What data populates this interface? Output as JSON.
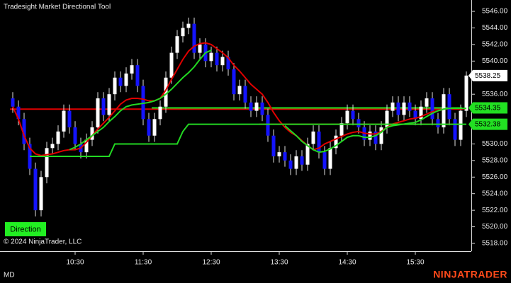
{
  "chart_data": {
    "type": "candlestick",
    "title": "Tradesight Market Directional Tool",
    "copyright": "© 2024 NinjaTrader, LLC",
    "button": "Direction",
    "status": "MD",
    "logo": "NINJATRADER",
    "categories": [
      null,
      null,
      null,
      null,
      null,
      null,
      null,
      null,
      null,
      null,
      null,
      "10:30",
      null,
      null,
      null,
      null,
      null,
      null,
      null,
      null,
      null,
      null,
      null,
      "11:30",
      null,
      null,
      null,
      null,
      null,
      null,
      null,
      null,
      null,
      null,
      null,
      "12:30",
      null,
      null,
      null,
      null,
      null,
      null,
      null,
      null,
      null,
      null,
      null,
      "13:30",
      null,
      null,
      null,
      null,
      null,
      null,
      null,
      null,
      null,
      null,
      null,
      "14:30",
      null,
      null,
      null,
      null,
      null,
      null,
      null,
      null,
      null,
      null,
      null,
      "15:30",
      null,
      null,
      null,
      null,
      null,
      null,
      null,
      null,
      null
    ],
    "open": [
      5535.5,
      5534.5,
      5533,
      5530,
      5527,
      5522,
      5526,
      5529.5,
      5530,
      5531.5,
      5534,
      5532,
      5530,
      5529,
      5530.5,
      5532,
      5535.5,
      5533.5,
      5536,
      5538,
      5537,
      5538.5,
      5539.5,
      5537,
      5533,
      5531,
      5533,
      5534.5,
      5538,
      5541,
      5543,
      5544,
      5544.5,
      5541,
      5542,
      5540,
      5541,
      5539.5,
      5540.5,
      5539,
      5536,
      5537,
      5535,
      5534,
      5535,
      5533.5,
      5531,
      5528.5,
      5529,
      5528,
      5527,
      5528.5,
      5527.5,
      5530,
      5531.5,
      5529,
      5527,
      5529.5,
      5531,
      5532.5,
      5534,
      5533,
      5532,
      5530.5,
      5531.5,
      5530,
      5532,
      5534,
      5535,
      5533.5,
      5535,
      5534,
      5533,
      5534.5,
      5535.5,
      5533,
      5532,
      5536,
      5533,
      5530.5,
      5534
    ],
    "high": [
      5536.25,
      5535.25,
      5533.75,
      5530.75,
      5527.75,
      5526.75,
      5530.25,
      5530.75,
      5532.25,
      5534.75,
      5534.75,
      5532.75,
      5530.75,
      5531.25,
      5532.75,
      5536.25,
      5536.25,
      5536.75,
      5538.75,
      5538.75,
      5539.25,
      5540.25,
      5540.25,
      5537.75,
      5533.75,
      5533.75,
      5535.25,
      5538.75,
      5541.75,
      5543.75,
      5544.75,
      5545.25,
      5545.25,
      5542.75,
      5542.75,
      5541.75,
      5541.75,
      5541.25,
      5541.25,
      5539.75,
      5537.75,
      5537.75,
      5535.75,
      5535.75,
      5535.75,
      5534.25,
      5531.75,
      5529.75,
      5529.75,
      5528.75,
      5529.25,
      5529.25,
      5530.75,
      5532.25,
      5532.25,
      5529.75,
      5530.25,
      5531.75,
      5533.25,
      5534.75,
      5534.75,
      5533.75,
      5532.75,
      5532.25,
      5532.25,
      5532.75,
      5534.75,
      5535.75,
      5535.75,
      5535.75,
      5535.75,
      5534.75,
      5535.25,
      5536.25,
      5536.25,
      5533.75,
      5536.75,
      5536.75,
      5533.75,
      5534.75,
      5538.75
    ],
    "low": [
      5533.75,
      5532.25,
      5529.25,
      5526.25,
      5521.25,
      5521.25,
      5525.25,
      5528.75,
      5529.25,
      5530.75,
      5531.25,
      5529.25,
      5528.25,
      5528.25,
      5529.75,
      5531.25,
      5532.75,
      5532.75,
      5535.25,
      5536.25,
      5536.25,
      5537.75,
      5536.25,
      5532.25,
      5530.25,
      5530.25,
      5532.25,
      5533.75,
      5537.25,
      5540.25,
      5542.25,
      5543.25,
      5540.25,
      5540.25,
      5539.25,
      5539.25,
      5538.75,
      5538.75,
      5538.25,
      5535.25,
      5535.25,
      5534.25,
      5533.25,
      5533.25,
      5532.75,
      5530.25,
      5527.75,
      5527.75,
      5527.25,
      5526.25,
      5526.25,
      5526.75,
      5526.75,
      5529.25,
      5528.25,
      5526.25,
      5526.25,
      5528.75,
      5530.25,
      5531.75,
      5532.25,
      5531.25,
      5529.75,
      5529.75,
      5529.25,
      5529.25,
      5531.25,
      5533.25,
      5532.75,
      5532.75,
      5533.25,
      5532.25,
      5532.25,
      5533.75,
      5532.25,
      5531.25,
      5531.25,
      5532.25,
      5529.75,
      5529.75,
      5533.25
    ],
    "close": [
      5534.5,
      5533,
      5530,
      5527,
      5522,
      5526,
      5529.5,
      5530,
      5531.5,
      5534,
      5532,
      5530,
      5529,
      5530.5,
      5532,
      5535.5,
      5533.5,
      5536,
      5538,
      5537,
      5538.5,
      5539.5,
      5537,
      5533,
      5531,
      5533,
      5534.5,
      5538,
      5541,
      5543,
      5544,
      5544.5,
      5541,
      5542,
      5540,
      5541,
      5539.5,
      5540.5,
      5539,
      5536,
      5537,
      5535,
      5534,
      5535,
      5533.5,
      5531,
      5528.5,
      5529,
      5528,
      5527,
      5528.5,
      5527.5,
      5530,
      5531.5,
      5529,
      5527,
      5529.5,
      5531,
      5532.5,
      5534,
      5533,
      5532,
      5530.5,
      5531.5,
      5530,
      5532,
      5534,
      5535,
      5533.5,
      5535,
      5534,
      5533,
      5534.5,
      5535.5,
      5533,
      5532,
      5536,
      5533,
      5530.5,
      5534,
      5538.25
    ],
    "up_color": "#ffffff",
    "down_color": "#1414ff",
    "wick_color": "#e0e0e0",
    "series": [
      {
        "color": "#e00000",
        "values": [
          5534.5,
          5533,
          5531,
          5529.5,
          5528.8,
          5528.6,
          5528.7,
          5528.8,
          5529,
          5529.2,
          5529.3,
          5529.3,
          5529.5,
          5530.2,
          5531,
          5531.8,
          5532.5,
          5533.2,
          5534,
          5534.8,
          5535.3,
          5535.5,
          5535.5,
          5535.4,
          5535.2,
          5535.2,
          5535.5,
          5536.5,
          5537.8,
          5539,
          5540.2,
          5541.2,
          5541.8,
          5542.1,
          5542.2,
          5542,
          5541.5,
          5541,
          5540.4,
          5539.5,
          5538.8,
          5538,
          5537.2,
          5536.6,
          5536,
          5535,
          5533.8,
          5532.8,
          5532,
          5531.4,
          5531,
          5530.4,
          5529.8,
          5529.3,
          5529.5,
          5530,
          5530.3,
          5530.6,
          5530.9,
          5531.2,
          5531.4,
          5531.5,
          5531.3,
          5531.2,
          5531.2,
          5531.5,
          5532,
          5532.4,
          5532.6,
          5532.8,
          5533,
          5533.1,
          5533.3,
          5533.6,
          5533.9,
          5534,
          5534.2,
          5534.3,
          5534.3,
          5534.2,
          5534.3
        ]
      },
      {
        "color": "#22d822",
        "values": [
          null,
          null,
          null,
          null,
          null,
          null,
          null,
          null,
          null,
          null,
          5529.3,
          5529.6,
          5530,
          5530.5,
          5531,
          5531.5,
          5532,
          5532.7,
          5533.3,
          5534,
          5534.5,
          5534.7,
          5534.8,
          5534.9,
          5535,
          5535.2,
          5535.5,
          5536,
          5536.6,
          5537.3,
          5538,
          5538.6,
          5539.3,
          5540.2,
          5541,
          5541.3,
          null,
          null,
          null,
          null,
          null,
          null,
          null,
          null,
          null,
          null,
          null,
          null,
          5532.2,
          5531.6,
          5531,
          5530.3,
          5529.8,
          5529.3,
          5529,
          5529.1,
          5529.4,
          5529.8,
          5530.3,
          5530.8,
          5531,
          5531,
          5530.8,
          5530.8,
          5531,
          5531.4,
          5532,
          5532.2,
          5532.3,
          5532.4,
          5532.5,
          5532.6,
          5532.9,
          5533.3,
          5533.7,
          5534,
          5534.2,
          5534.3,
          5534.3,
          5534.3,
          5534.3
        ]
      },
      {
        "color": "#22d822",
        "values": [
          null,
          null,
          null,
          5528.5,
          5528.5,
          5528.5,
          5528.5,
          5528.5,
          5528.5,
          5528.5,
          5528.5,
          5528.5,
          5528.5,
          5528.5,
          5528.5,
          5528.5,
          5528.5,
          5528.5,
          5530,
          5530,
          5530,
          5530,
          5530,
          5530,
          5530,
          5530,
          5530,
          5530,
          5530,
          5530,
          5531.5,
          5532.38,
          5532.38,
          5532.38,
          5532.38,
          5532.38,
          5532.38,
          5532.38,
          5532.38,
          5532.38,
          5532.38,
          5532.38,
          5532.38,
          5532.38,
          5532.38,
          5532.38,
          5532.38,
          5532.38,
          5532.38,
          5532.38,
          5532.38,
          5532.38,
          5532.38,
          5532.38,
          5532.38,
          5532.38,
          5532.38,
          5532.38,
          5532.38,
          5532.38,
          5532.38,
          5532.38,
          5532.38,
          5532.38,
          5532.38,
          5532.38,
          5532.38,
          5532.38,
          5532.38,
          5532.38,
          5532.38,
          5532.38,
          5532.38,
          5532.38,
          5532.38,
          5532.38,
          5532.38,
          5532.38,
          5532.38,
          5532.38,
          5532.38
        ]
      }
    ],
    "levels": [
      {
        "value": 5534.2,
        "color": "#e00000",
        "start": 0
      },
      {
        "value": 5534.35,
        "color": "#22e022",
        "start": 25
      },
      {
        "value": 5532.38,
        "color": "#e00000",
        "start": 44
      }
    ],
    "ylim": [
      5517.06,
      5547.37
    ],
    "yticks": [
      {
        "value": 5518,
        "label": "5518.00"
      },
      {
        "value": 5520,
        "label": "5520.00"
      },
      {
        "value": 5522,
        "label": "5522.00"
      },
      {
        "value": 5524,
        "label": "5524.00"
      },
      {
        "value": 5526,
        "label": "5526.00"
      },
      {
        "value": 5528,
        "label": "5528.00"
      },
      {
        "value": 5530,
        "label": "5530.00"
      },
      {
        "value": 5532,
        "label": "5532.00"
      },
      {
        "value": 5534,
        "label": "5534.00"
      },
      {
        "value": 5536,
        "label": "5536.00"
      },
      {
        "value": 5538,
        "label": "5538.00"
      },
      {
        "value": 5540,
        "label": "5540.00"
      },
      {
        "value": 5542,
        "label": "5542.00"
      },
      {
        "value": 5544,
        "label": "5544.00"
      },
      {
        "value": 5546,
        "label": "5546.00"
      }
    ]
  }
}
